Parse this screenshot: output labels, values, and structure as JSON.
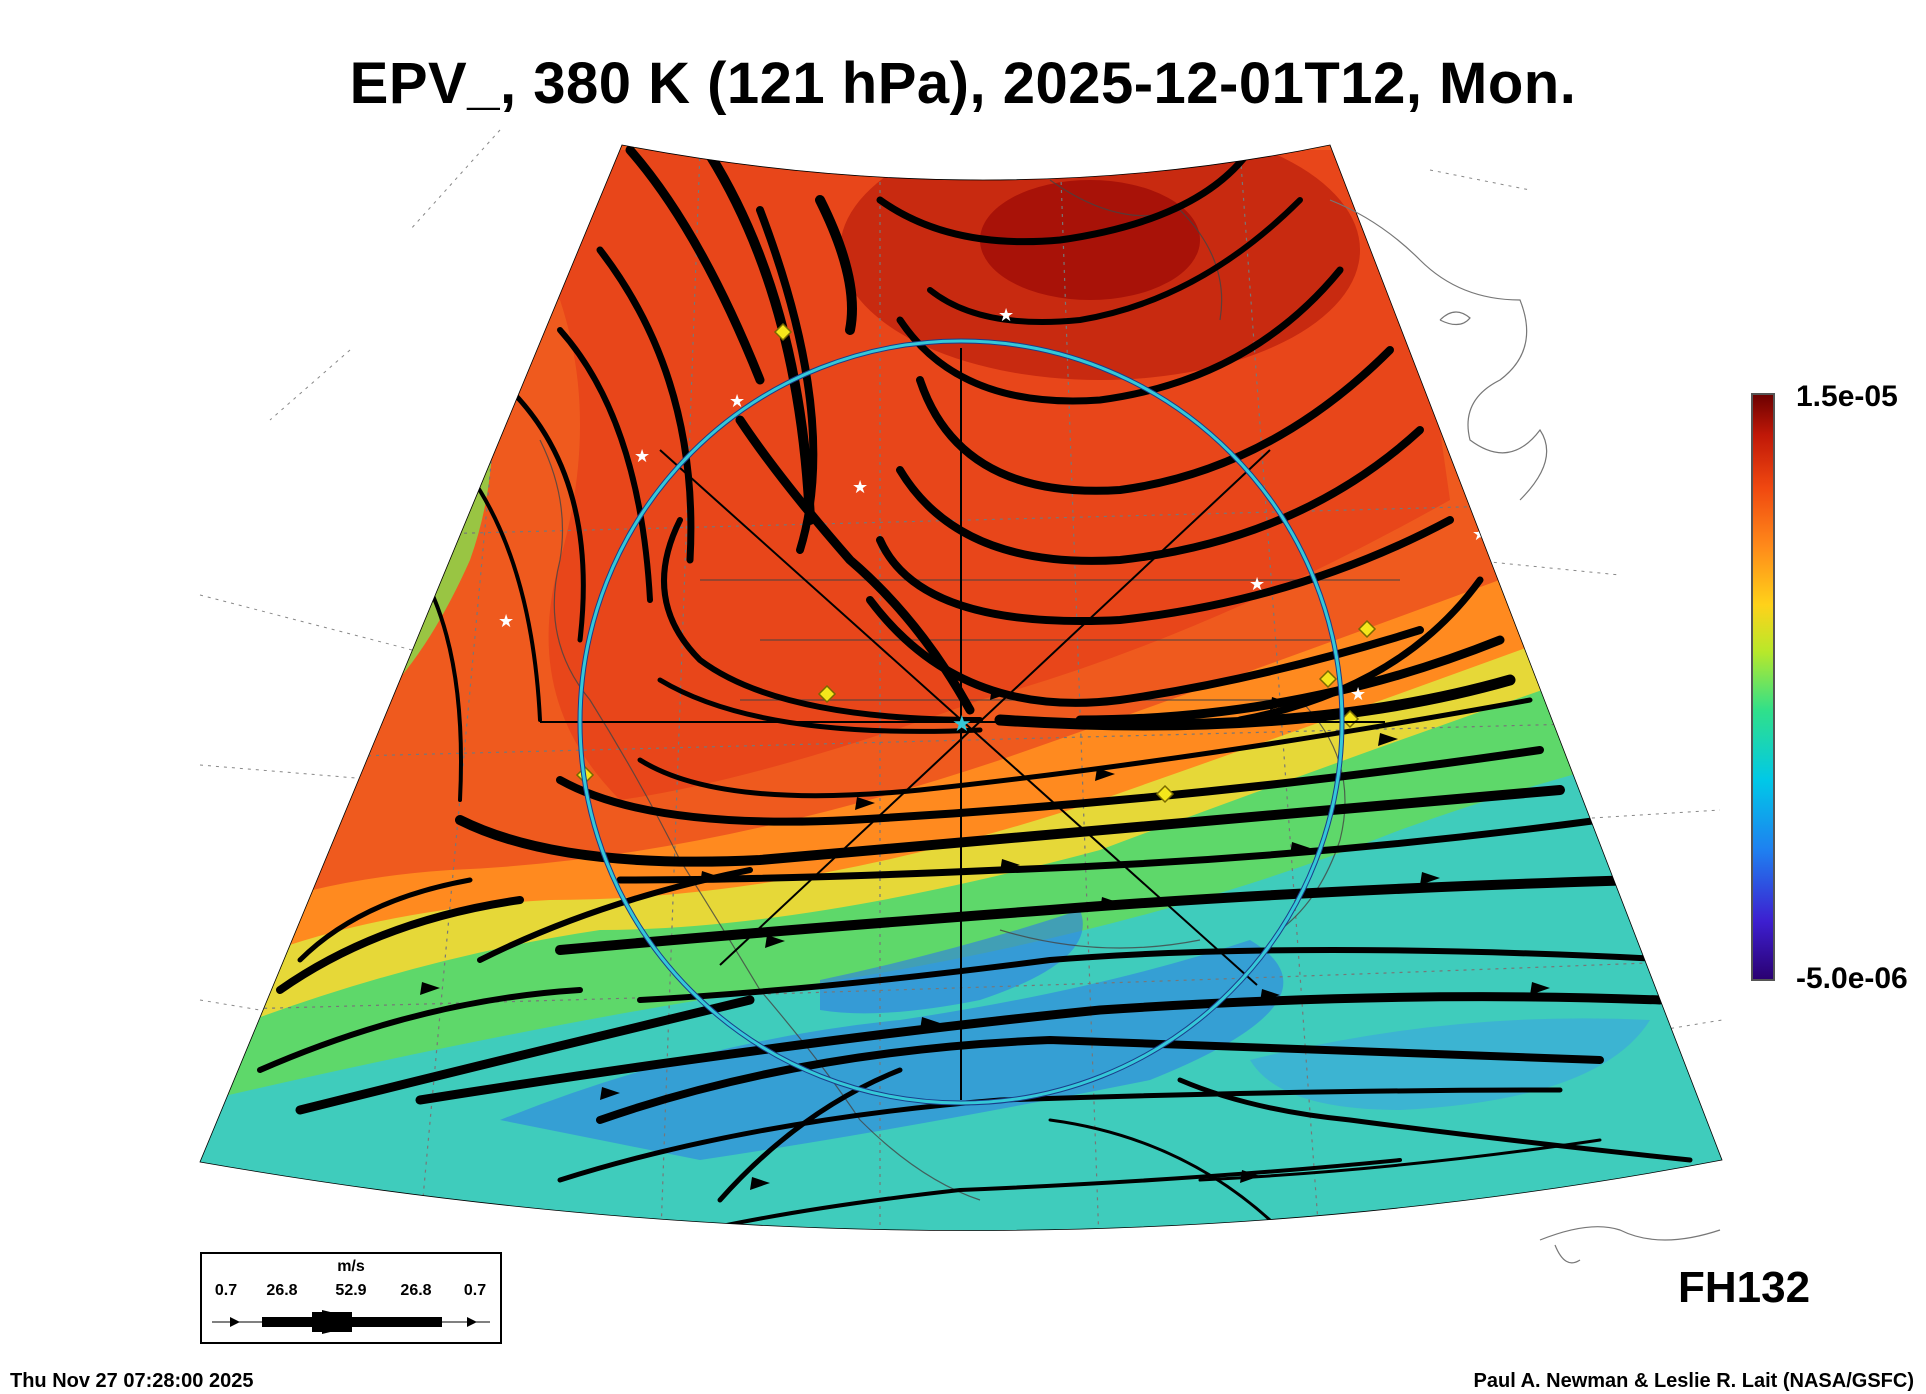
{
  "title": "EPV_, 380 K (121 hPa), 2025-12-01T12, Mon.",
  "colorbar": {
    "max_label": "1.5e-05",
    "min_label": "-5.0e-06",
    "colors": [
      "#2a0070",
      "#3d1fd0",
      "#1f7ff0",
      "#00c8e8",
      "#30e08a",
      "#b8e82a",
      "#ffd21a",
      "#ff8a1a",
      "#f04810",
      "#c01808",
      "#6a0000"
    ]
  },
  "field_colors": {
    "high": "#e8461a",
    "peak": "#a81208",
    "mid": "#ff8a1f",
    "yellow": "#e6d838",
    "green": "#5ed86a",
    "cyan": "#35c8d8",
    "blue": "#2e7ae8"
  },
  "forecast_hour": "FH132",
  "timestamp": "Thu Nov 27 07:28:00 2025",
  "credit": "Paul A. Newman & Leslie R. Lait (NASA/GSFC)",
  "wind_legend": {
    "unit": "m/s",
    "values": [
      "0.7",
      "26.8",
      "52.9",
      "26.8",
      "0.7"
    ]
  },
  "overlay": {
    "ring_color": "#35c8d8",
    "marker_colors": {
      "star": "#ffffff",
      "diamond": "#f5e61b"
    }
  }
}
